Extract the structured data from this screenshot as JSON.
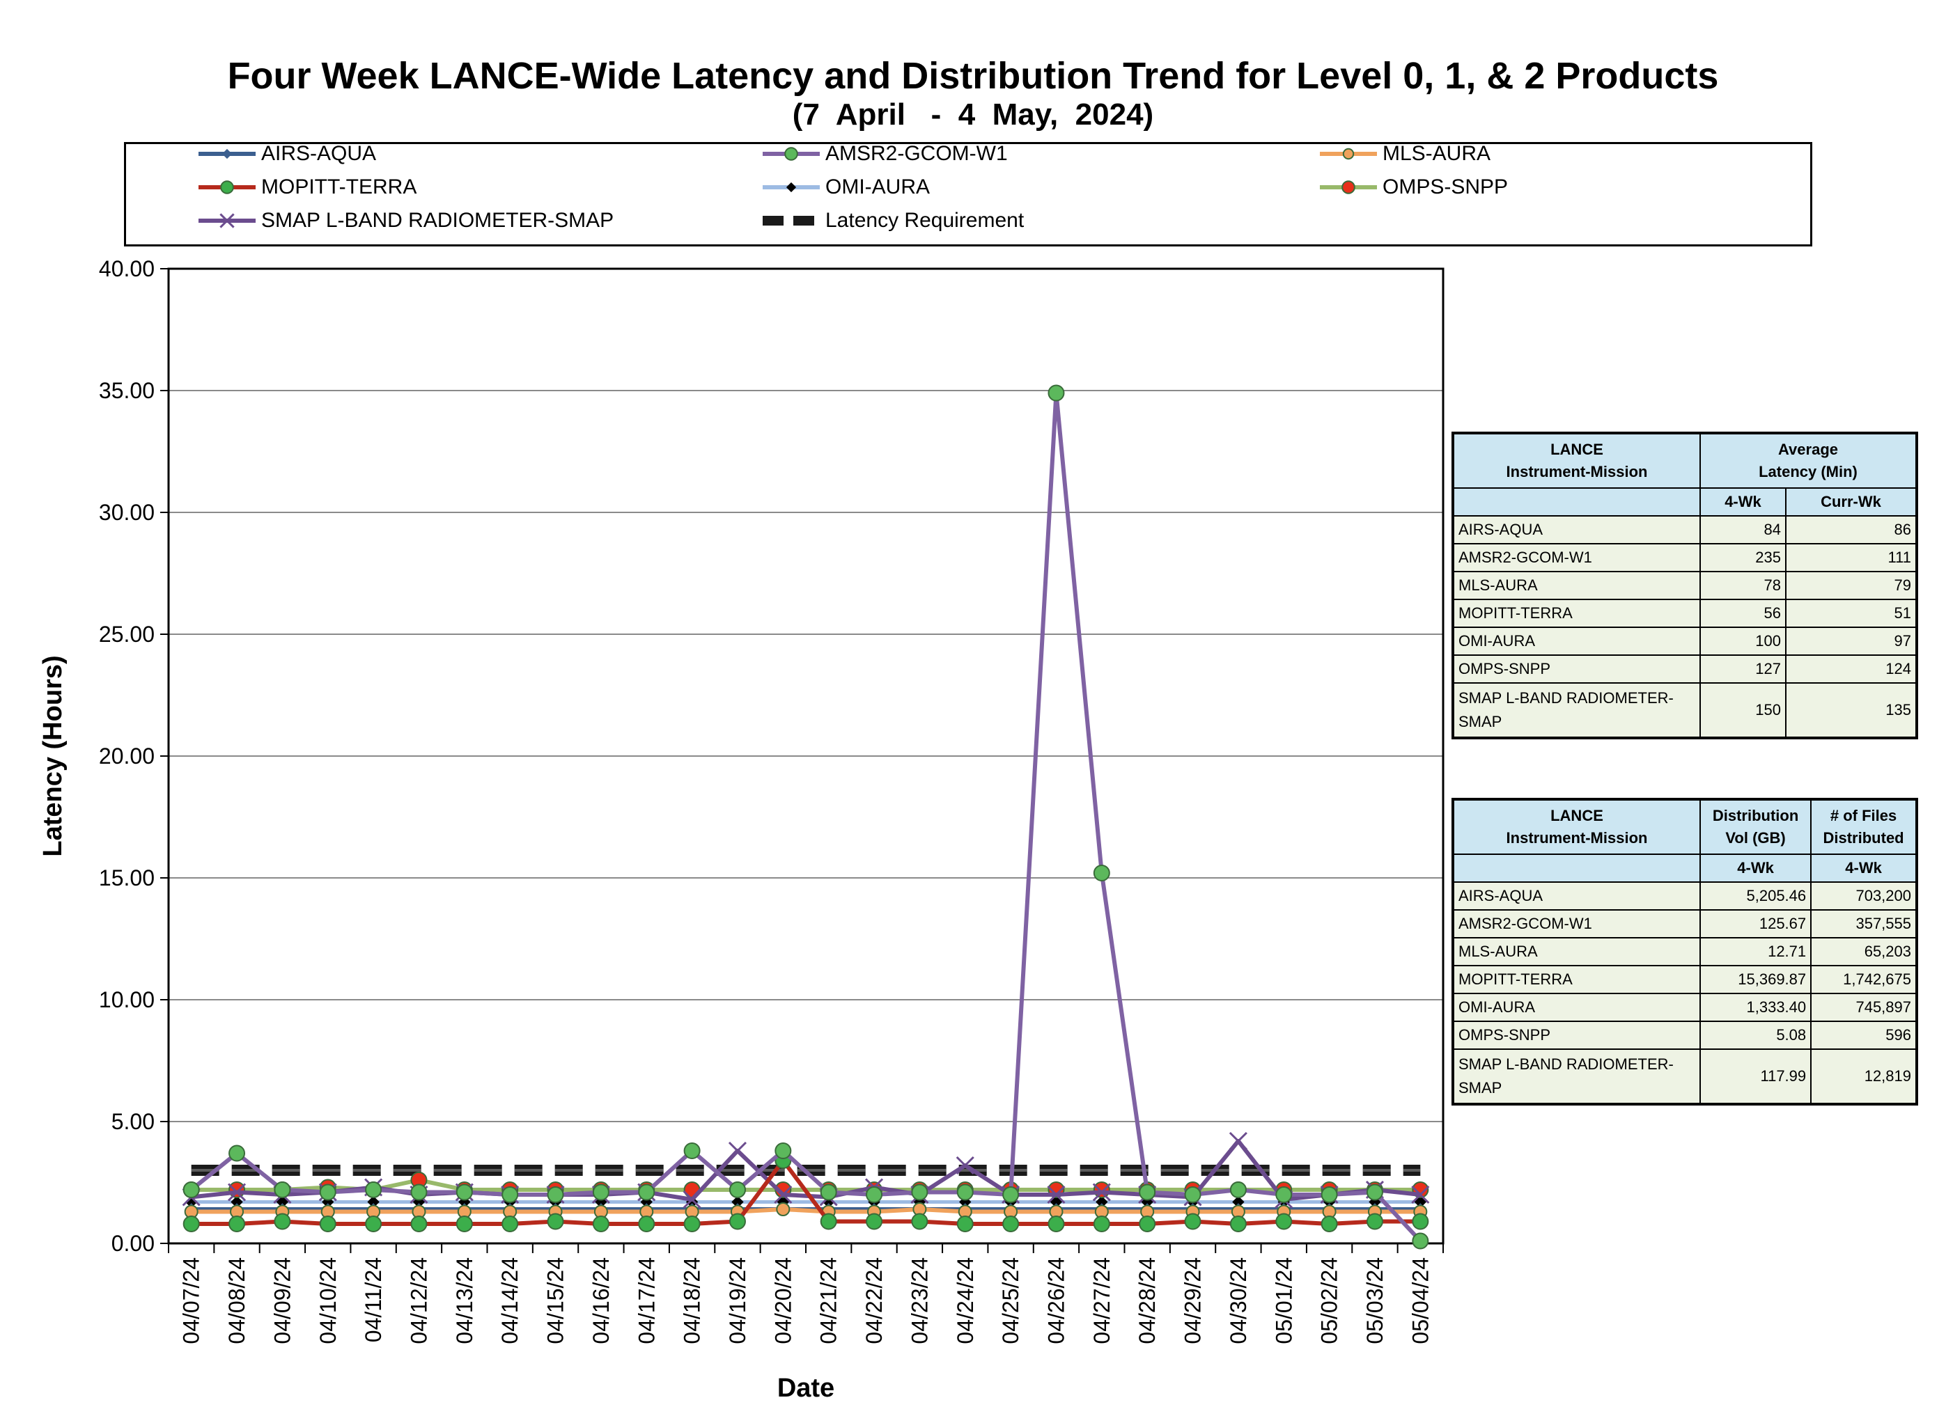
{
  "chart_data": {
    "type": "line",
    "title": "Four Week LANCE-Wide Latency and Distribution Trend for Level 0, 1, & 2 Products",
    "subtitle": "(7  April   -  4  May,  2024)",
    "xlabel": "Date",
    "ylabel": "Latency (Hours)",
    "ylim": [
      0,
      40
    ],
    "yticks": [
      "0.00",
      "5.00",
      "10.00",
      "15.00",
      "20.00",
      "25.00",
      "30.00",
      "35.00",
      "40.00"
    ],
    "grid": true,
    "legend_position": "top",
    "categories": [
      "04/07/24",
      "04/08/24",
      "04/09/24",
      "04/10/24",
      "04/11/24",
      "04/12/24",
      "04/13/24",
      "04/14/24",
      "04/15/24",
      "04/16/24",
      "04/17/24",
      "04/18/24",
      "04/19/24",
      "04/20/24",
      "04/21/24",
      "04/22/24",
      "04/23/24",
      "04/24/24",
      "04/25/24",
      "04/26/24",
      "04/27/24",
      "04/28/24",
      "04/29/24",
      "04/30/24",
      "05/01/24",
      "05/02/24",
      "05/03/24",
      "05/04/24"
    ],
    "series": [
      {
        "name": "AIRS-AQUA",
        "color": "#3b5f8f",
        "marker": "diamond",
        "values": [
          1.4,
          1.4,
          1.4,
          1.4,
          1.4,
          1.4,
          1.4,
          1.4,
          1.4,
          1.4,
          1.4,
          1.4,
          1.4,
          1.4,
          1.4,
          1.4,
          1.4,
          1.4,
          1.4,
          1.4,
          1.4,
          1.4,
          1.4,
          1.4,
          1.4,
          1.4,
          1.4,
          1.4
        ]
      },
      {
        "name": "AMSR2-GCOM-W1",
        "color": "#7f62a3",
        "marker": "circle",
        "values": [
          2.2,
          3.7,
          2.2,
          2.1,
          2.2,
          2.1,
          2.1,
          2.0,
          2.0,
          2.1,
          2.1,
          3.8,
          2.2,
          3.8,
          2.1,
          2.0,
          2.1,
          2.1,
          2.0,
          34.9,
          15.2,
          2.1,
          2.0,
          2.2,
          2.0,
          2.0,
          2.1,
          0.1
        ]
      },
      {
        "name": "MLS-AURA",
        "color": "#f0a25c",
        "marker": "circle",
        "values": [
          1.3,
          1.3,
          1.3,
          1.3,
          1.3,
          1.3,
          1.3,
          1.3,
          1.3,
          1.3,
          1.3,
          1.3,
          1.3,
          1.4,
          1.3,
          1.3,
          1.4,
          1.3,
          1.3,
          1.3,
          1.3,
          1.3,
          1.3,
          1.3,
          1.3,
          1.3,
          1.3,
          1.3
        ]
      },
      {
        "name": "MOPITT-TERRA",
        "color": "#b62a1c",
        "marker": "circle",
        "values": [
          0.8,
          0.8,
          0.9,
          0.8,
          0.8,
          0.8,
          0.8,
          0.8,
          0.9,
          0.8,
          0.8,
          0.8,
          0.9,
          3.4,
          0.9,
          0.9,
          0.9,
          0.8,
          0.8,
          0.8,
          0.8,
          0.8,
          0.9,
          0.8,
          0.9,
          0.8,
          0.9,
          0.9
        ]
      },
      {
        "name": "OMI-AURA",
        "color": "#9dbbe3",
        "marker": "diamond",
        "values": [
          1.7,
          1.7,
          1.7,
          1.7,
          1.7,
          1.7,
          1.7,
          1.7,
          1.7,
          1.7,
          1.7,
          1.7,
          1.7,
          1.7,
          1.7,
          1.7,
          1.7,
          1.7,
          1.7,
          1.7,
          1.7,
          1.7,
          1.7,
          1.7,
          1.7,
          1.7,
          1.7,
          1.7
        ]
      },
      {
        "name": "OMPS-SNPP",
        "color": "#98b96a",
        "marker": "circle",
        "values": [
          2.2,
          2.2,
          2.2,
          2.3,
          2.2,
          2.6,
          2.2,
          2.2,
          2.2,
          2.2,
          2.2,
          2.2,
          2.2,
          2.2,
          2.2,
          2.2,
          2.2,
          2.2,
          2.2,
          2.2,
          2.2,
          2.2,
          2.2,
          2.2,
          2.2,
          2.2,
          2.2,
          2.2
        ]
      },
      {
        "name": "SMAP L-BAND RADIOMETER-SMAP",
        "color": "#6b4c8e",
        "marker": "x",
        "values": [
          1.9,
          2.1,
          2.0,
          2.1,
          2.3,
          2.0,
          2.1,
          2.0,
          2.0,
          2.0,
          2.1,
          1.8,
          3.8,
          2.0,
          1.9,
          2.3,
          2.0,
          3.2,
          2.0,
          2.0,
          2.1,
          2.0,
          1.9,
          4.2,
          1.8,
          2.0,
          2.2,
          2.0
        ]
      },
      {
        "name": "Latency Requirement",
        "color": "#111111",
        "marker": "none",
        "dashed": true,
        "values": [
          3,
          3,
          3,
          3,
          3,
          3,
          3,
          3,
          3,
          3,
          3,
          3,
          3,
          3,
          3,
          3,
          3,
          3,
          3,
          3,
          3,
          3,
          3,
          3,
          3,
          3,
          3,
          3
        ]
      }
    ]
  },
  "latency_table": {
    "header_mission": "LANCE Instrument-Mission",
    "header_mission_l1": "LANCE",
    "header_mission_l2": "Instrument-Mission",
    "header_avg_l1": "Average",
    "header_avg_l2": "Latency (Min)",
    "sub_4wk": "4-Wk",
    "sub_curr": "Curr-Wk",
    "rows": [
      {
        "name": "AIRS-AQUA",
        "wk4": "84",
        "curr": "86"
      },
      {
        "name": "AMSR2-GCOM-W1",
        "wk4": "235",
        "curr": "111"
      },
      {
        "name": "MLS-AURA",
        "wk4": "78",
        "curr": "79"
      },
      {
        "name": "MOPITT-TERRA",
        "wk4": "56",
        "curr": "51"
      },
      {
        "name": "OMI-AURA",
        "wk4": "100",
        "curr": "97"
      },
      {
        "name": "OMPS-SNPP",
        "wk4": "127",
        "curr": "124"
      },
      {
        "name": "SMAP L-BAND RADIOMETER-SMAP",
        "wk4": "150",
        "curr": "135"
      }
    ]
  },
  "distribution_table": {
    "header_mission_l1": "LANCE",
    "header_mission_l2": "Instrument-Mission",
    "header_vol_l1": "Distribution",
    "header_vol_l2": "Vol (GB)",
    "header_files_l1": "# of Files",
    "header_files_l2": "Distributed",
    "sub_vol": "4-Wk",
    "sub_files": "4-Wk",
    "rows": [
      {
        "name": "AIRS-AQUA",
        "vol": "5,205.46",
        "files": "703,200"
      },
      {
        "name": "AMSR2-GCOM-W1",
        "vol": "125.67",
        "files": "357,555"
      },
      {
        "name": "MLS-AURA",
        "vol": "12.71",
        "files": "65,203"
      },
      {
        "name": "MOPITT-TERRA",
        "vol": "15,369.87",
        "files": "1,742,675"
      },
      {
        "name": "OMI-AURA",
        "vol": "1,333.40",
        "files": "745,897"
      },
      {
        "name": "OMPS-SNPP",
        "vol": "5.08",
        "files": "596"
      },
      {
        "name": "SMAP L-BAND RADIOMETER-SMAP",
        "vol": "117.99",
        "files": "12,819"
      }
    ]
  }
}
